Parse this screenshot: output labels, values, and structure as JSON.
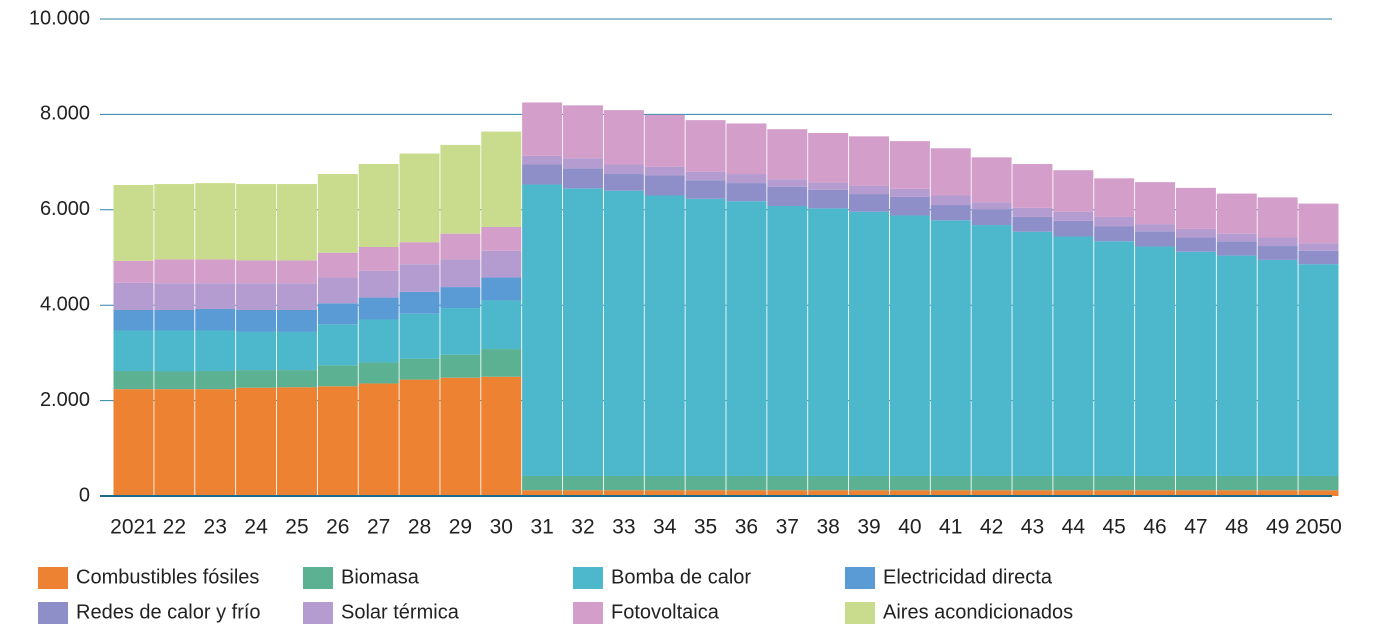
{
  "chart_data": {
    "type": "stacked_bar",
    "categories": [
      "2021",
      "22",
      "23",
      "24",
      "25",
      "26",
      "27",
      "28",
      "29",
      "30",
      "31",
      "32",
      "33",
      "34",
      "35",
      "36",
      "37",
      "38",
      "39",
      "40",
      "41",
      "42",
      "43",
      "44",
      "45",
      "46",
      "47",
      "48",
      "49",
      "2050"
    ],
    "series": [
      {
        "name": "Combustibles fósiles",
        "color": "#ee8233",
        "values": [
          2240,
          2240,
          2240,
          2270,
          2280,
          2300,
          2360,
          2440,
          2480,
          2500,
          120,
          120,
          120,
          120,
          120,
          120,
          120,
          120,
          120,
          120,
          120,
          120,
          120,
          120,
          120,
          120,
          120,
          120,
          120,
          120
        ]
      },
      {
        "name": "Biomasa",
        "color": "#5bb191",
        "values": [
          380,
          370,
          380,
          370,
          360,
          440,
          440,
          440,
          480,
          580,
          300,
          300,
          300,
          300,
          300,
          300,
          300,
          300,
          300,
          300,
          300,
          300,
          300,
          300,
          300,
          300,
          300,
          300,
          300,
          300
        ]
      },
      {
        "name": "Bomba de calor",
        "color": "#4db8cc",
        "values": [
          850,
          860,
          850,
          800,
          800,
          860,
          900,
          940,
          980,
          1020,
          6110,
          6030,
          5980,
          5880,
          5810,
          5760,
          5660,
          5610,
          5540,
          5460,
          5360,
          5260,
          5120,
          5020,
          4920,
          4810,
          4700,
          4620,
          4530,
          4440
        ]
      },
      {
        "name": "Electricidad directa",
        "color": "#5b9bd5",
        "values": [
          430,
          430,
          450,
          460,
          460,
          440,
          460,
          460,
          440,
          480,
          0,
          0,
          0,
          0,
          0,
          0,
          0,
          0,
          0,
          0,
          0,
          0,
          0,
          0,
          0,
          0,
          0,
          0,
          0,
          0
        ]
      },
      {
        "name": "Redes de calor y frío",
        "color": "#8e8fc9",
        "values": [
          0,
          0,
          0,
          0,
          0,
          0,
          0,
          0,
          0,
          0,
          420,
          420,
          350,
          420,
          390,
          380,
          400,
          390,
          370,
          390,
          320,
          330,
          310,
          330,
          310,
          320,
          300,
          300,
          290,
          280
        ]
      },
      {
        "name": "Solar térmica",
        "color": "#b59cd0",
        "values": [
          570,
          560,
          540,
          560,
          560,
          540,
          560,
          580,
          580,
          560,
          180,
          210,
          200,
          180,
          180,
          190,
          160,
          150,
          170,
          170,
          200,
          150,
          190,
          190,
          200,
          150,
          180,
          160,
          180,
          160
        ]
      },
      {
        "name": "Fotovoltaica",
        "color": "#d39ec9",
        "values": [
          460,
          500,
          500,
          480,
          480,
          520,
          500,
          460,
          540,
          500,
          1120,
          1110,
          1140,
          1090,
          1080,
          1060,
          1050,
          1040,
          1040,
          1000,
          990,
          940,
          920,
          870,
          810,
          880,
          860,
          840,
          840,
          830
        ]
      },
      {
        "name": "Aires acondicionados",
        "color": "#c9dc8e",
        "values": [
          1590,
          1580,
          1600,
          1600,
          1600,
          1650,
          1740,
          1860,
          1860,
          2000,
          0,
          0,
          0,
          0,
          0,
          0,
          0,
          0,
          0,
          0,
          0,
          0,
          0,
          0,
          0,
          0,
          0,
          0,
          0,
          0
        ]
      }
    ],
    "ylim": [
      0,
      10000
    ],
    "yticks": [
      0,
      {
        "value": 2000,
        "label": "2.000"
      },
      {
        "value": 4000,
        "label": "4.000"
      },
      {
        "value": 6000,
        "label": "6.000"
      },
      {
        "value": 8000,
        "label": "8.000"
      },
      {
        "value": 10000,
        "label": "10.000"
      }
    ],
    "grid": true,
    "legend": "bottom"
  }
}
